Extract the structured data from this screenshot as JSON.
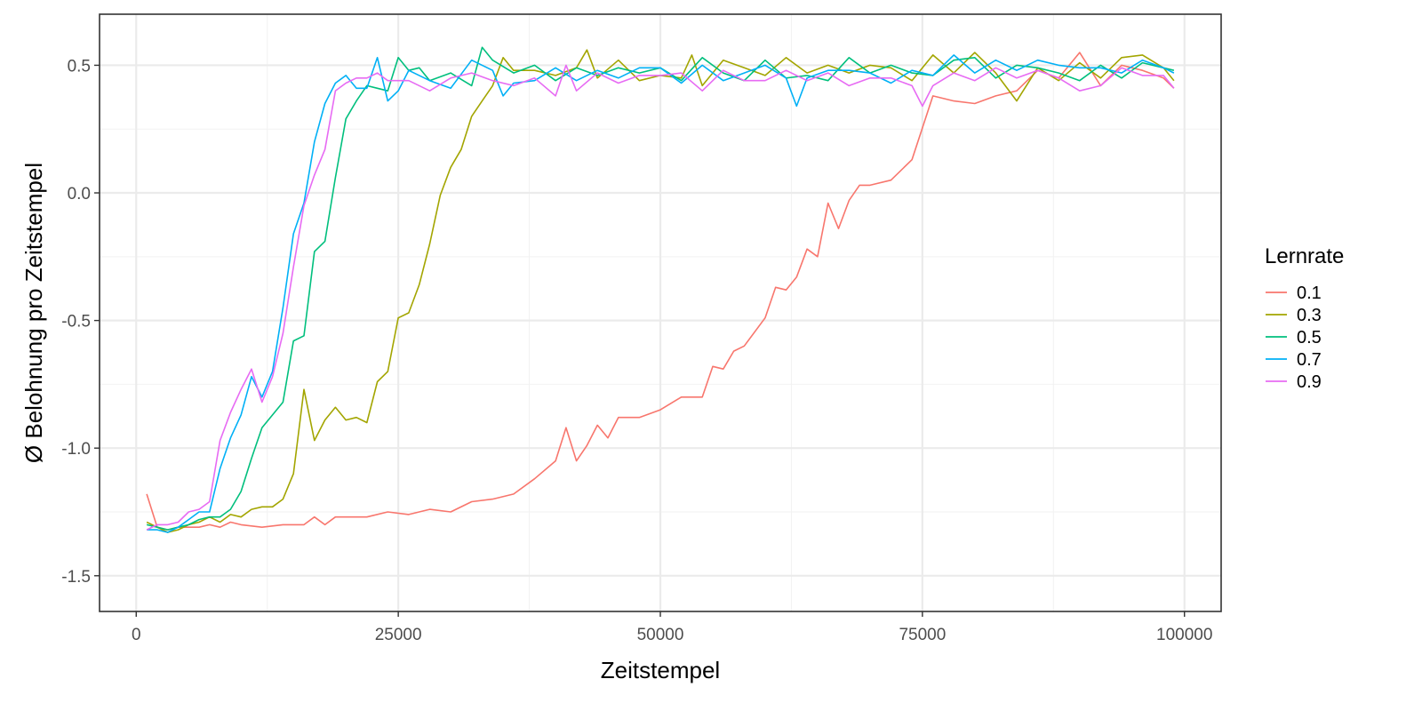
{
  "chart_data": {
    "type": "line",
    "xlabel": "Zeitstempel",
    "ylabel": "Ø Belohnung pro Zeitstempel",
    "xlim": [
      -3500,
      103500
    ],
    "ylim": [
      -1.64,
      0.7
    ],
    "xticks": [
      0,
      25000,
      50000,
      75000,
      100000
    ],
    "xtick_labels": [
      "0",
      "25000",
      "50000",
      "75000",
      "100000"
    ],
    "yticks": [
      -1.5,
      -1.0,
      -0.5,
      0.0,
      0.5
    ],
    "ytick_labels": [
      "-1.5",
      "-1.0",
      "-0.5",
      "0.0",
      "0.5"
    ],
    "grid": true,
    "legend": {
      "title": "Lernrate",
      "position": "right"
    },
    "series": [
      {
        "name": "0.1",
        "color": "#F8766D",
        "x": [
          1000,
          2000,
          3000,
          4000,
          5000,
          6000,
          7000,
          8000,
          9000,
          10000,
          12000,
          14000,
          16000,
          17000,
          18000,
          19000,
          20000,
          22000,
          24000,
          26000,
          28000,
          30000,
          32000,
          34000,
          36000,
          38000,
          40000,
          41000,
          42000,
          43000,
          44000,
          45000,
          46000,
          48000,
          50000,
          52000,
          54000,
          55000,
          56000,
          57000,
          58000,
          60000,
          61000,
          62000,
          63000,
          64000,
          65000,
          66000,
          67000,
          68000,
          69000,
          70000,
          72000,
          74000,
          76000,
          78000,
          80000,
          82000,
          84000,
          86000,
          88000,
          90000,
          92000,
          94000,
          96000,
          98000,
          99000
        ],
        "values": [
          -1.18,
          -1.31,
          -1.32,
          -1.31,
          -1.31,
          -1.31,
          -1.3,
          -1.31,
          -1.29,
          -1.3,
          -1.31,
          -1.3,
          -1.3,
          -1.27,
          -1.3,
          -1.27,
          -1.27,
          -1.27,
          -1.25,
          -1.26,
          -1.24,
          -1.25,
          -1.21,
          -1.2,
          -1.18,
          -1.12,
          -1.05,
          -0.92,
          -1.05,
          -0.99,
          -0.91,
          -0.96,
          -0.88,
          -0.88,
          -0.85,
          -0.8,
          -0.8,
          -0.68,
          -0.69,
          -0.62,
          -0.6,
          -0.49,
          -0.37,
          -0.38,
          -0.33,
          -0.22,
          -0.25,
          -0.04,
          -0.14,
          -0.03,
          0.03,
          0.03,
          0.05,
          0.13,
          0.38,
          0.36,
          0.35,
          0.38,
          0.4,
          0.48,
          0.45,
          0.55,
          0.42,
          0.5,
          0.48,
          0.45,
          0.41
        ]
      },
      {
        "name": "0.3",
        "color": "#A3A500",
        "x": [
          1000,
          2000,
          3000,
          4000,
          5000,
          6000,
          7000,
          8000,
          9000,
          10000,
          11000,
          12000,
          13000,
          14000,
          15000,
          16000,
          17000,
          18000,
          19000,
          20000,
          21000,
          22000,
          23000,
          24000,
          25000,
          26000,
          27000,
          28000,
          29000,
          30000,
          31000,
          32000,
          33000,
          34000,
          35000,
          36000,
          38000,
          40000,
          42000,
          43000,
          44000,
          46000,
          48000,
          50000,
          52000,
          53000,
          54000,
          56000,
          58000,
          60000,
          62000,
          64000,
          66000,
          68000,
          70000,
          72000,
          74000,
          76000,
          78000,
          80000,
          82000,
          84000,
          86000,
          88000,
          90000,
          92000,
          94000,
          96000,
          98000,
          99000
        ],
        "values": [
          -1.29,
          -1.31,
          -1.33,
          -1.32,
          -1.3,
          -1.29,
          -1.27,
          -1.29,
          -1.26,
          -1.27,
          -1.24,
          -1.23,
          -1.23,
          -1.2,
          -1.1,
          -0.77,
          -0.97,
          -0.89,
          -0.84,
          -0.89,
          -0.88,
          -0.9,
          -0.74,
          -0.7,
          -0.49,
          -0.47,
          -0.36,
          -0.2,
          -0.01,
          0.1,
          0.17,
          0.3,
          0.36,
          0.42,
          0.53,
          0.48,
          0.48,
          0.46,
          0.49,
          0.56,
          0.45,
          0.52,
          0.44,
          0.46,
          0.45,
          0.54,
          0.42,
          0.52,
          0.49,
          0.46,
          0.53,
          0.47,
          0.5,
          0.47,
          0.5,
          0.49,
          0.44,
          0.54,
          0.47,
          0.55,
          0.47,
          0.36,
          0.49,
          0.44,
          0.51,
          0.45,
          0.53,
          0.54,
          0.49,
          0.44
        ]
      },
      {
        "name": "0.5",
        "color": "#00BF7D",
        "x": [
          1000,
          2000,
          3000,
          4000,
          5000,
          6000,
          7000,
          8000,
          9000,
          10000,
          11000,
          12000,
          13000,
          14000,
          15000,
          16000,
          17000,
          18000,
          19000,
          20000,
          21000,
          22000,
          23000,
          24000,
          25000,
          26000,
          27000,
          28000,
          30000,
          32000,
          33000,
          34000,
          36000,
          38000,
          40000,
          42000,
          44000,
          46000,
          48000,
          50000,
          52000,
          54000,
          56000,
          58000,
          60000,
          62000,
          64000,
          66000,
          68000,
          70000,
          72000,
          74000,
          76000,
          78000,
          80000,
          82000,
          84000,
          86000,
          88000,
          90000,
          92000,
          94000,
          96000,
          98000,
          99000
        ],
        "values": [
          -1.3,
          -1.31,
          -1.32,
          -1.31,
          -1.3,
          -1.28,
          -1.27,
          -1.27,
          -1.24,
          -1.17,
          -1.04,
          -0.92,
          -0.87,
          -0.82,
          -0.58,
          -0.56,
          -0.23,
          -0.19,
          0.06,
          0.29,
          0.36,
          0.42,
          0.41,
          0.4,
          0.53,
          0.48,
          0.49,
          0.44,
          0.47,
          0.42,
          0.57,
          0.52,
          0.47,
          0.5,
          0.44,
          0.49,
          0.46,
          0.49,
          0.47,
          0.49,
          0.44,
          0.53,
          0.47,
          0.44,
          0.52,
          0.45,
          0.46,
          0.44,
          0.53,
          0.47,
          0.5,
          0.47,
          0.46,
          0.52,
          0.53,
          0.45,
          0.5,
          0.49,
          0.47,
          0.44,
          0.5,
          0.45,
          0.51,
          0.49,
          0.48
        ]
      },
      {
        "name": "0.7",
        "color": "#00B0F6",
        "x": [
          1000,
          2000,
          3000,
          4000,
          5000,
          6000,
          7000,
          8000,
          9000,
          10000,
          11000,
          12000,
          13000,
          14000,
          15000,
          16000,
          17000,
          18000,
          19000,
          20000,
          21000,
          22000,
          23000,
          24000,
          25000,
          26000,
          28000,
          30000,
          32000,
          34000,
          35000,
          36000,
          38000,
          40000,
          42000,
          44000,
          46000,
          48000,
          50000,
          52000,
          54000,
          56000,
          58000,
          60000,
          62000,
          63000,
          64000,
          66000,
          68000,
          70000,
          72000,
          74000,
          76000,
          78000,
          80000,
          82000,
          84000,
          86000,
          88000,
          90000,
          92000,
          94000,
          96000,
          98000,
          99000
        ],
        "values": [
          -1.32,
          -1.32,
          -1.33,
          -1.31,
          -1.28,
          -1.25,
          -1.25,
          -1.08,
          -0.96,
          -0.87,
          -0.72,
          -0.8,
          -0.7,
          -0.45,
          -0.16,
          -0.04,
          0.2,
          0.35,
          0.43,
          0.46,
          0.41,
          0.41,
          0.53,
          0.36,
          0.4,
          0.48,
          0.44,
          0.41,
          0.52,
          0.48,
          0.38,
          0.43,
          0.44,
          0.49,
          0.44,
          0.48,
          0.45,
          0.49,
          0.49,
          0.43,
          0.5,
          0.44,
          0.47,
          0.5,
          0.45,
          0.34,
          0.45,
          0.48,
          0.48,
          0.47,
          0.43,
          0.48,
          0.46,
          0.54,
          0.47,
          0.52,
          0.48,
          0.52,
          0.5,
          0.49,
          0.49,
          0.47,
          0.52,
          0.49,
          0.47
        ]
      },
      {
        "name": "0.9",
        "color": "#E76BF3",
        "x": [
          1000,
          2000,
          3000,
          4000,
          5000,
          6000,
          7000,
          8000,
          9000,
          10000,
          11000,
          12000,
          13000,
          14000,
          15000,
          16000,
          17000,
          18000,
          19000,
          20000,
          21000,
          22000,
          23000,
          24000,
          26000,
          28000,
          30000,
          32000,
          34000,
          36000,
          38000,
          40000,
          41000,
          42000,
          44000,
          46000,
          48000,
          50000,
          52000,
          54000,
          56000,
          58000,
          60000,
          62000,
          64000,
          66000,
          68000,
          70000,
          72000,
          74000,
          75000,
          76000,
          78000,
          80000,
          82000,
          84000,
          86000,
          88000,
          90000,
          92000,
          94000,
          96000,
          98000,
          99000
        ],
        "values": [
          -1.32,
          -1.3,
          -1.3,
          -1.29,
          -1.25,
          -1.24,
          -1.21,
          -0.97,
          -0.86,
          -0.77,
          -0.69,
          -0.82,
          -0.72,
          -0.55,
          -0.29,
          -0.05,
          0.07,
          0.17,
          0.4,
          0.43,
          0.45,
          0.45,
          0.47,
          0.44,
          0.44,
          0.4,
          0.45,
          0.47,
          0.44,
          0.42,
          0.45,
          0.38,
          0.5,
          0.4,
          0.47,
          0.43,
          0.46,
          0.46,
          0.47,
          0.4,
          0.48,
          0.44,
          0.44,
          0.48,
          0.44,
          0.47,
          0.42,
          0.45,
          0.45,
          0.42,
          0.34,
          0.42,
          0.47,
          0.44,
          0.49,
          0.45,
          0.48,
          0.45,
          0.4,
          0.42,
          0.49,
          0.46,
          0.46,
          0.41
        ]
      }
    ]
  }
}
